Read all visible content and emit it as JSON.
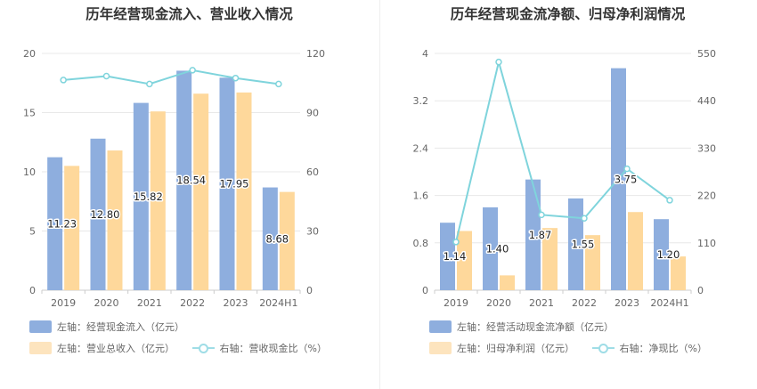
{
  "colors": {
    "bar1": "#8eaede",
    "bar2": "#fed89b",
    "line": "#7fd4dc",
    "grid": "#e8e8e8",
    "axis": "#cccccc"
  },
  "chart_data": [
    {
      "type": "bar",
      "title": "历年经营现金流入、营业收入情况",
      "categories": [
        "2019",
        "2020",
        "2021",
        "2022",
        "2023",
        "2024H1"
      ],
      "yleft": {
        "ticks": [
          "0",
          "5",
          "10",
          "15",
          "20"
        ],
        "range": [
          0,
          20
        ]
      },
      "yright": {
        "ticks": [
          "0",
          "30",
          "60",
          "90",
          "120"
        ],
        "range": [
          0,
          120
        ]
      },
      "series": [
        {
          "name": "左轴：经营现金流入（亿元）",
          "axis": "left",
          "kind": "bar",
          "values": [
            11.23,
            12.8,
            15.82,
            18.54,
            17.95,
            8.68
          ],
          "labels": [
            "11.23",
            "12.80",
            "15.82",
            "18.54",
            "17.95",
            "8.68"
          ]
        },
        {
          "name": "左轴：营业总收入（亿元）",
          "axis": "left",
          "kind": "bar",
          "values": [
            10.5,
            11.8,
            15.1,
            16.6,
            16.7,
            8.3
          ]
        },
        {
          "name": "右轴：营收现金比（%）",
          "axis": "right",
          "kind": "line",
          "values": [
            106.5,
            108.5,
            104.5,
            111.5,
            107.5,
            104.5
          ]
        }
      ]
    },
    {
      "type": "bar",
      "title": "历年经营现金流净额、归母净利润情况",
      "categories": [
        "2019",
        "2020",
        "2021",
        "2022",
        "2023",
        "2024H1"
      ],
      "yleft": {
        "ticks": [
          "0",
          "0.8",
          "1.6",
          "2.4",
          "3.2",
          "4"
        ],
        "range": [
          0,
          4
        ]
      },
      "yright": {
        "ticks": [
          "0",
          "110",
          "220",
          "330",
          "440",
          "550"
        ],
        "range": [
          0,
          550
        ]
      },
      "series": [
        {
          "name": "左轴：经营活动现金流净额（亿元）",
          "axis": "left",
          "kind": "bar",
          "values": [
            1.14,
            1.4,
            1.87,
            1.55,
            3.75,
            1.2
          ],
          "labels": [
            "1.14",
            "1.40",
            "1.87",
            "1.55",
            "3.75",
            "1.20"
          ]
        },
        {
          "name": "左轴：归母净利润（亿元）",
          "axis": "left",
          "kind": "bar",
          "values": [
            1.0,
            0.25,
            1.05,
            0.93,
            1.32,
            0.57
          ]
        },
        {
          "name": "右轴：净现比（%）",
          "axis": "right",
          "kind": "line",
          "values": [
            112,
            530,
            175,
            167,
            282,
            209
          ]
        }
      ]
    }
  ]
}
